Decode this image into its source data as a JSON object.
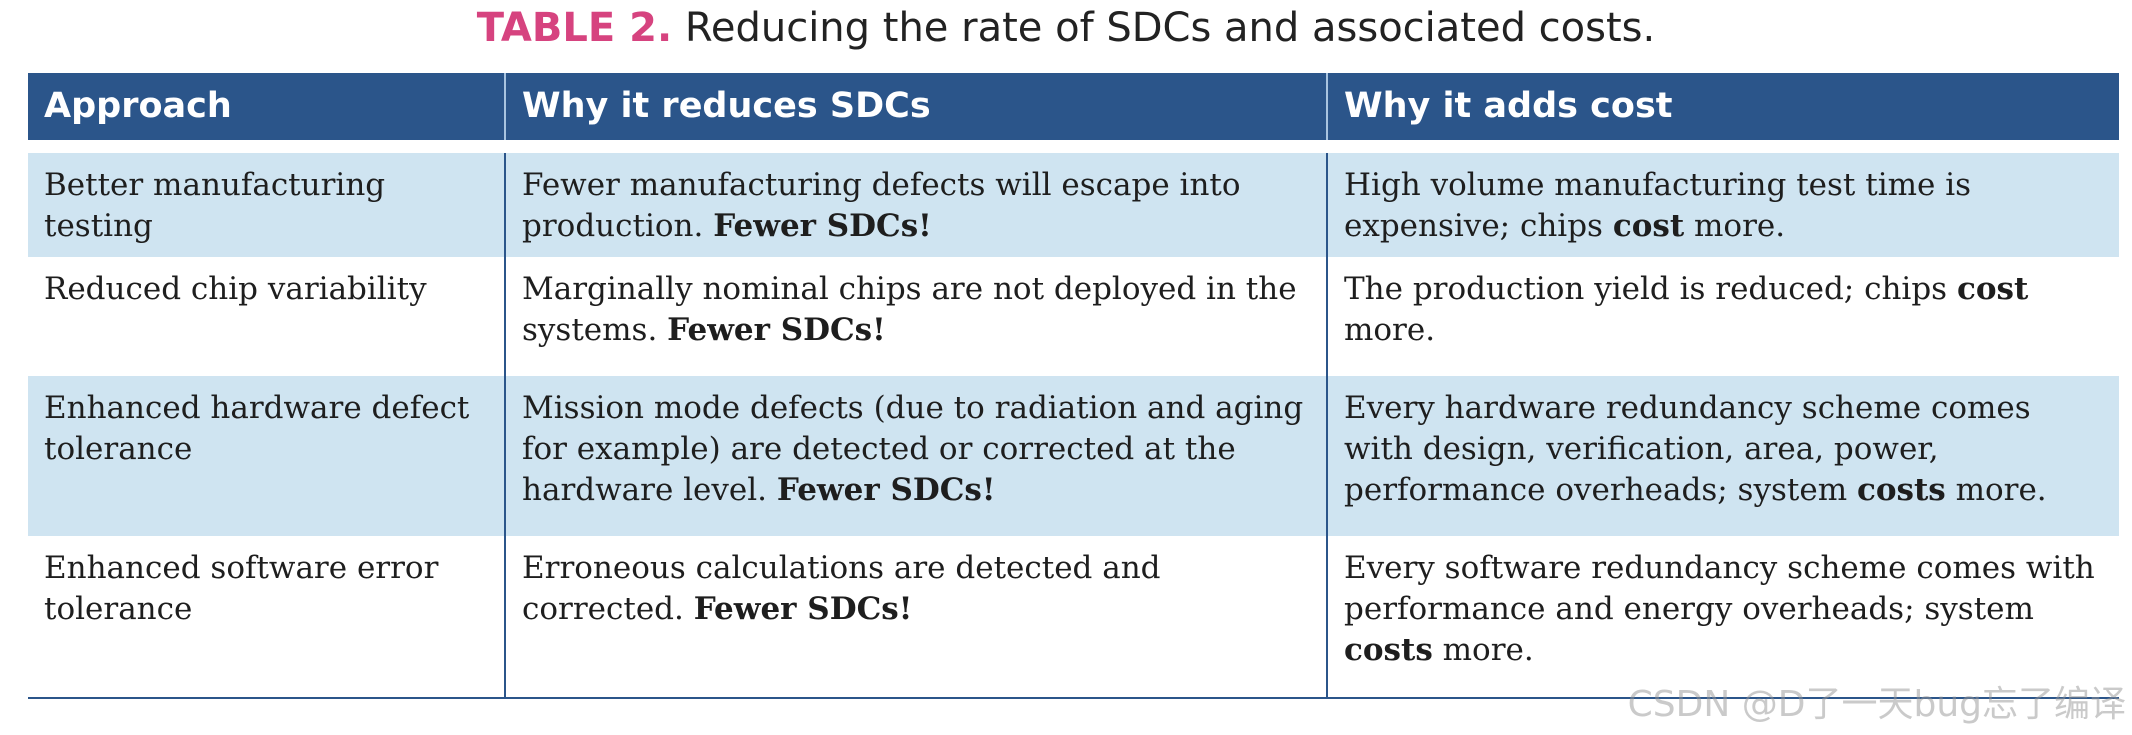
{
  "caption": {
    "label": "TABLE 2.",
    "text": " Reducing the rate of SDCs and associated costs."
  },
  "table": {
    "headers": [
      "Approach",
      "Why it reduces SDCs",
      "Why it adds cost"
    ],
    "rows": [
      {
        "approach": "Better manufacturing testing",
        "reduces": {
          "text": "Fewer manufacturing defects will escape into production. ",
          "bold": "Fewer SDCs!"
        },
        "cost": {
          "before": "High volume manufacturing test time is expensive; chips ",
          "bold": "cost",
          "after": " more."
        }
      },
      {
        "approach": "Reduced chip variability",
        "reduces": {
          "text": "Marginally nominal chips are not deployed in the systems. ",
          "bold": "Fewer SDCs!"
        },
        "cost": {
          "before": "The production yield is reduced; chips ",
          "bold": "cost",
          "after": " more."
        }
      },
      {
        "approach": "Enhanced hardware defect tolerance",
        "reduces": {
          "text": "Mission mode defects (due to radiation and aging for example) are detected or corrected at the hardware level. ",
          "bold": "Fewer SDCs!"
        },
        "cost": {
          "before": "Every hardware redundancy scheme comes with design, verification, area, power, performance overheads; system ",
          "bold": "costs",
          "after": " more."
        }
      },
      {
        "approach": "Enhanced software error tolerance",
        "reduces": {
          "text": "Erroneous calculations are detected and corrected. ",
          "bold": "Fewer SDCs!"
        },
        "cost": {
          "before": "Every software redundancy scheme comes with performance and energy overheads; system ",
          "bold": "costs",
          "after": " more."
        }
      }
    ]
  },
  "watermark": "CSDN @D了一天bug忘了编译",
  "colors": {
    "header_bg": "#2b558a",
    "shaded_row_bg": "#cfe4f1",
    "caption_label": "#d6437f"
  }
}
